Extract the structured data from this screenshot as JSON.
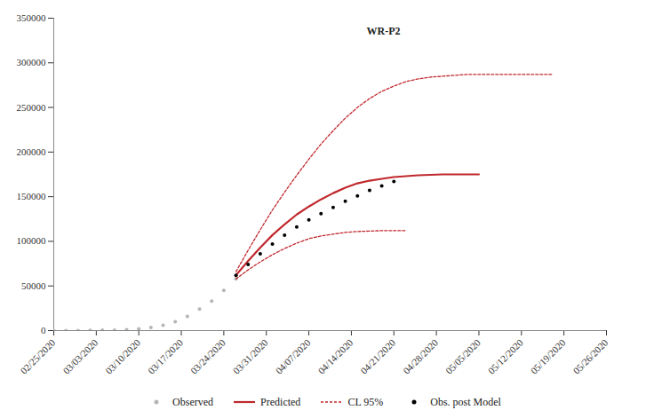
{
  "chart_data": {
    "type": "line",
    "title": "WR-P2",
    "x": [
      "2020-02-25",
      "2020-02-27",
      "2020-02-29",
      "2020-03-02",
      "2020-03-04",
      "2020-03-06",
      "2020-03-08",
      "2020-03-10",
      "2020-03-12",
      "2020-03-14",
      "2020-03-16",
      "2020-03-18",
      "2020-03-20",
      "2020-03-22",
      "2020-03-24",
      "2020-03-26",
      "2020-03-28",
      "2020-03-30",
      "2020-04-01",
      "2020-04-03",
      "2020-04-05",
      "2020-04-07",
      "2020-04-09",
      "2020-04-11",
      "2020-04-13",
      "2020-04-15",
      "2020-04-17",
      "2020-04-19",
      "2020-04-21",
      "2020-04-23",
      "2020-04-25",
      "2020-04-27",
      "2020-04-29",
      "2020-05-01",
      "2020-05-03",
      "2020-05-05",
      "2020-05-07",
      "2020-05-09",
      "2020-05-11",
      "2020-05-13",
      "2020-05-15",
      "2020-05-17"
    ],
    "series": [
      {
        "name": "Observed",
        "color": "#b5b5b5",
        "marker": "circle",
        "line_style": "none",
        "values": [
          0,
          0,
          100,
          200,
          400,
          600,
          1000,
          2000,
          3500,
          6000,
          10000,
          16000,
          24000,
          33000,
          45000,
          58000,
          null,
          null,
          null,
          null,
          null,
          null,
          null,
          null,
          null,
          null,
          null,
          null,
          null,
          null,
          null,
          null,
          null,
          null,
          null,
          null,
          null,
          null,
          null,
          null,
          null,
          null
        ]
      },
      {
        "name": "Predicted",
        "color": "#c0282d",
        "marker": "none",
        "line_style": "solid",
        "values": [
          null,
          null,
          null,
          null,
          null,
          null,
          null,
          null,
          null,
          null,
          null,
          null,
          null,
          null,
          null,
          62000,
          78000,
          93000,
          107000,
          119000,
          130000,
          139000,
          147000,
          154000,
          160000,
          165000,
          168000,
          170000,
          172000,
          173000,
          174000,
          174500,
          175000,
          175000,
          175000,
          175000,
          null,
          null,
          null,
          null,
          null,
          null
        ]
      },
      {
        "name": "CL 95%",
        "color": "#c0282d",
        "marker": "none",
        "line_style": "dashed",
        "values": [
          null,
          null,
          null,
          null,
          null,
          null,
          null,
          null,
          null,
          null,
          null,
          null,
          null,
          null,
          null,
          66000,
          90000,
          113000,
          135000,
          155000,
          174000,
          192000,
          209000,
          224000,
          238000,
          250000,
          260000,
          268000,
          274000,
          279000,
          282000,
          284000,
          285000,
          286000,
          287000,
          287000,
          287000,
          287000,
          287000,
          287000,
          287000,
          287000
        ]
      },
      {
        "name": "CL 95%",
        "color": "#c0282d",
        "marker": "none",
        "line_style": "dashed",
        "values": [
          null,
          null,
          null,
          null,
          null,
          null,
          null,
          null,
          null,
          null,
          null,
          null,
          null,
          null,
          null,
          58000,
          68000,
          77000,
          85000,
          92000,
          98000,
          103000,
          106000,
          108000,
          110000,
          111000,
          111500,
          112000,
          112000,
          112000,
          null,
          null,
          null,
          null,
          null,
          null,
          null,
          null,
          null,
          null,
          null,
          null
        ]
      },
      {
        "name": "Obs. post Model",
        "color": "#000000",
        "marker": "circle",
        "line_style": "none",
        "values": [
          null,
          null,
          null,
          null,
          null,
          null,
          null,
          null,
          null,
          null,
          null,
          null,
          null,
          null,
          null,
          62000,
          74000,
          86000,
          97000,
          107000,
          116000,
          124000,
          131000,
          138000,
          145000,
          151000,
          157000,
          162000,
          167000,
          null,
          null,
          null,
          null,
          null,
          null,
          null,
          null,
          null,
          null,
          null,
          null,
          null
        ]
      }
    ],
    "xlim": [
      "2020-02-25",
      "2020-05-26"
    ],
    "xticks": [
      {
        "value": "2020-02-25",
        "label": "02/25/2020"
      },
      {
        "value": "2020-03-03",
        "label": "03/03/2020"
      },
      {
        "value": "2020-03-10",
        "label": "03/10/2020"
      },
      {
        "value": "2020-03-17",
        "label": "03/17/2020"
      },
      {
        "value": "2020-03-24",
        "label": "03/24/2020"
      },
      {
        "value": "2020-03-31",
        "label": "03/31/2020"
      },
      {
        "value": "2020-04-07",
        "label": "04/07/2020"
      },
      {
        "value": "2020-04-14",
        "label": "04/14/2020"
      },
      {
        "value": "2020-04-21",
        "label": "04/21/2020"
      },
      {
        "value": "2020-04-28",
        "label": "04/28/2020"
      },
      {
        "value": "2020-05-05",
        "label": "05/05/2020"
      },
      {
        "value": "2020-05-12",
        "label": "05/12/2020"
      },
      {
        "value": "2020-05-19",
        "label": "05/19/2020"
      },
      {
        "value": "2020-05-26",
        "label": "05/26/2020"
      }
    ],
    "ylim": [
      0,
      350000
    ],
    "yticks": [
      0,
      50000,
      100000,
      150000,
      200000,
      250000,
      300000,
      350000
    ],
    "grid": false,
    "legend": "bottom"
  }
}
